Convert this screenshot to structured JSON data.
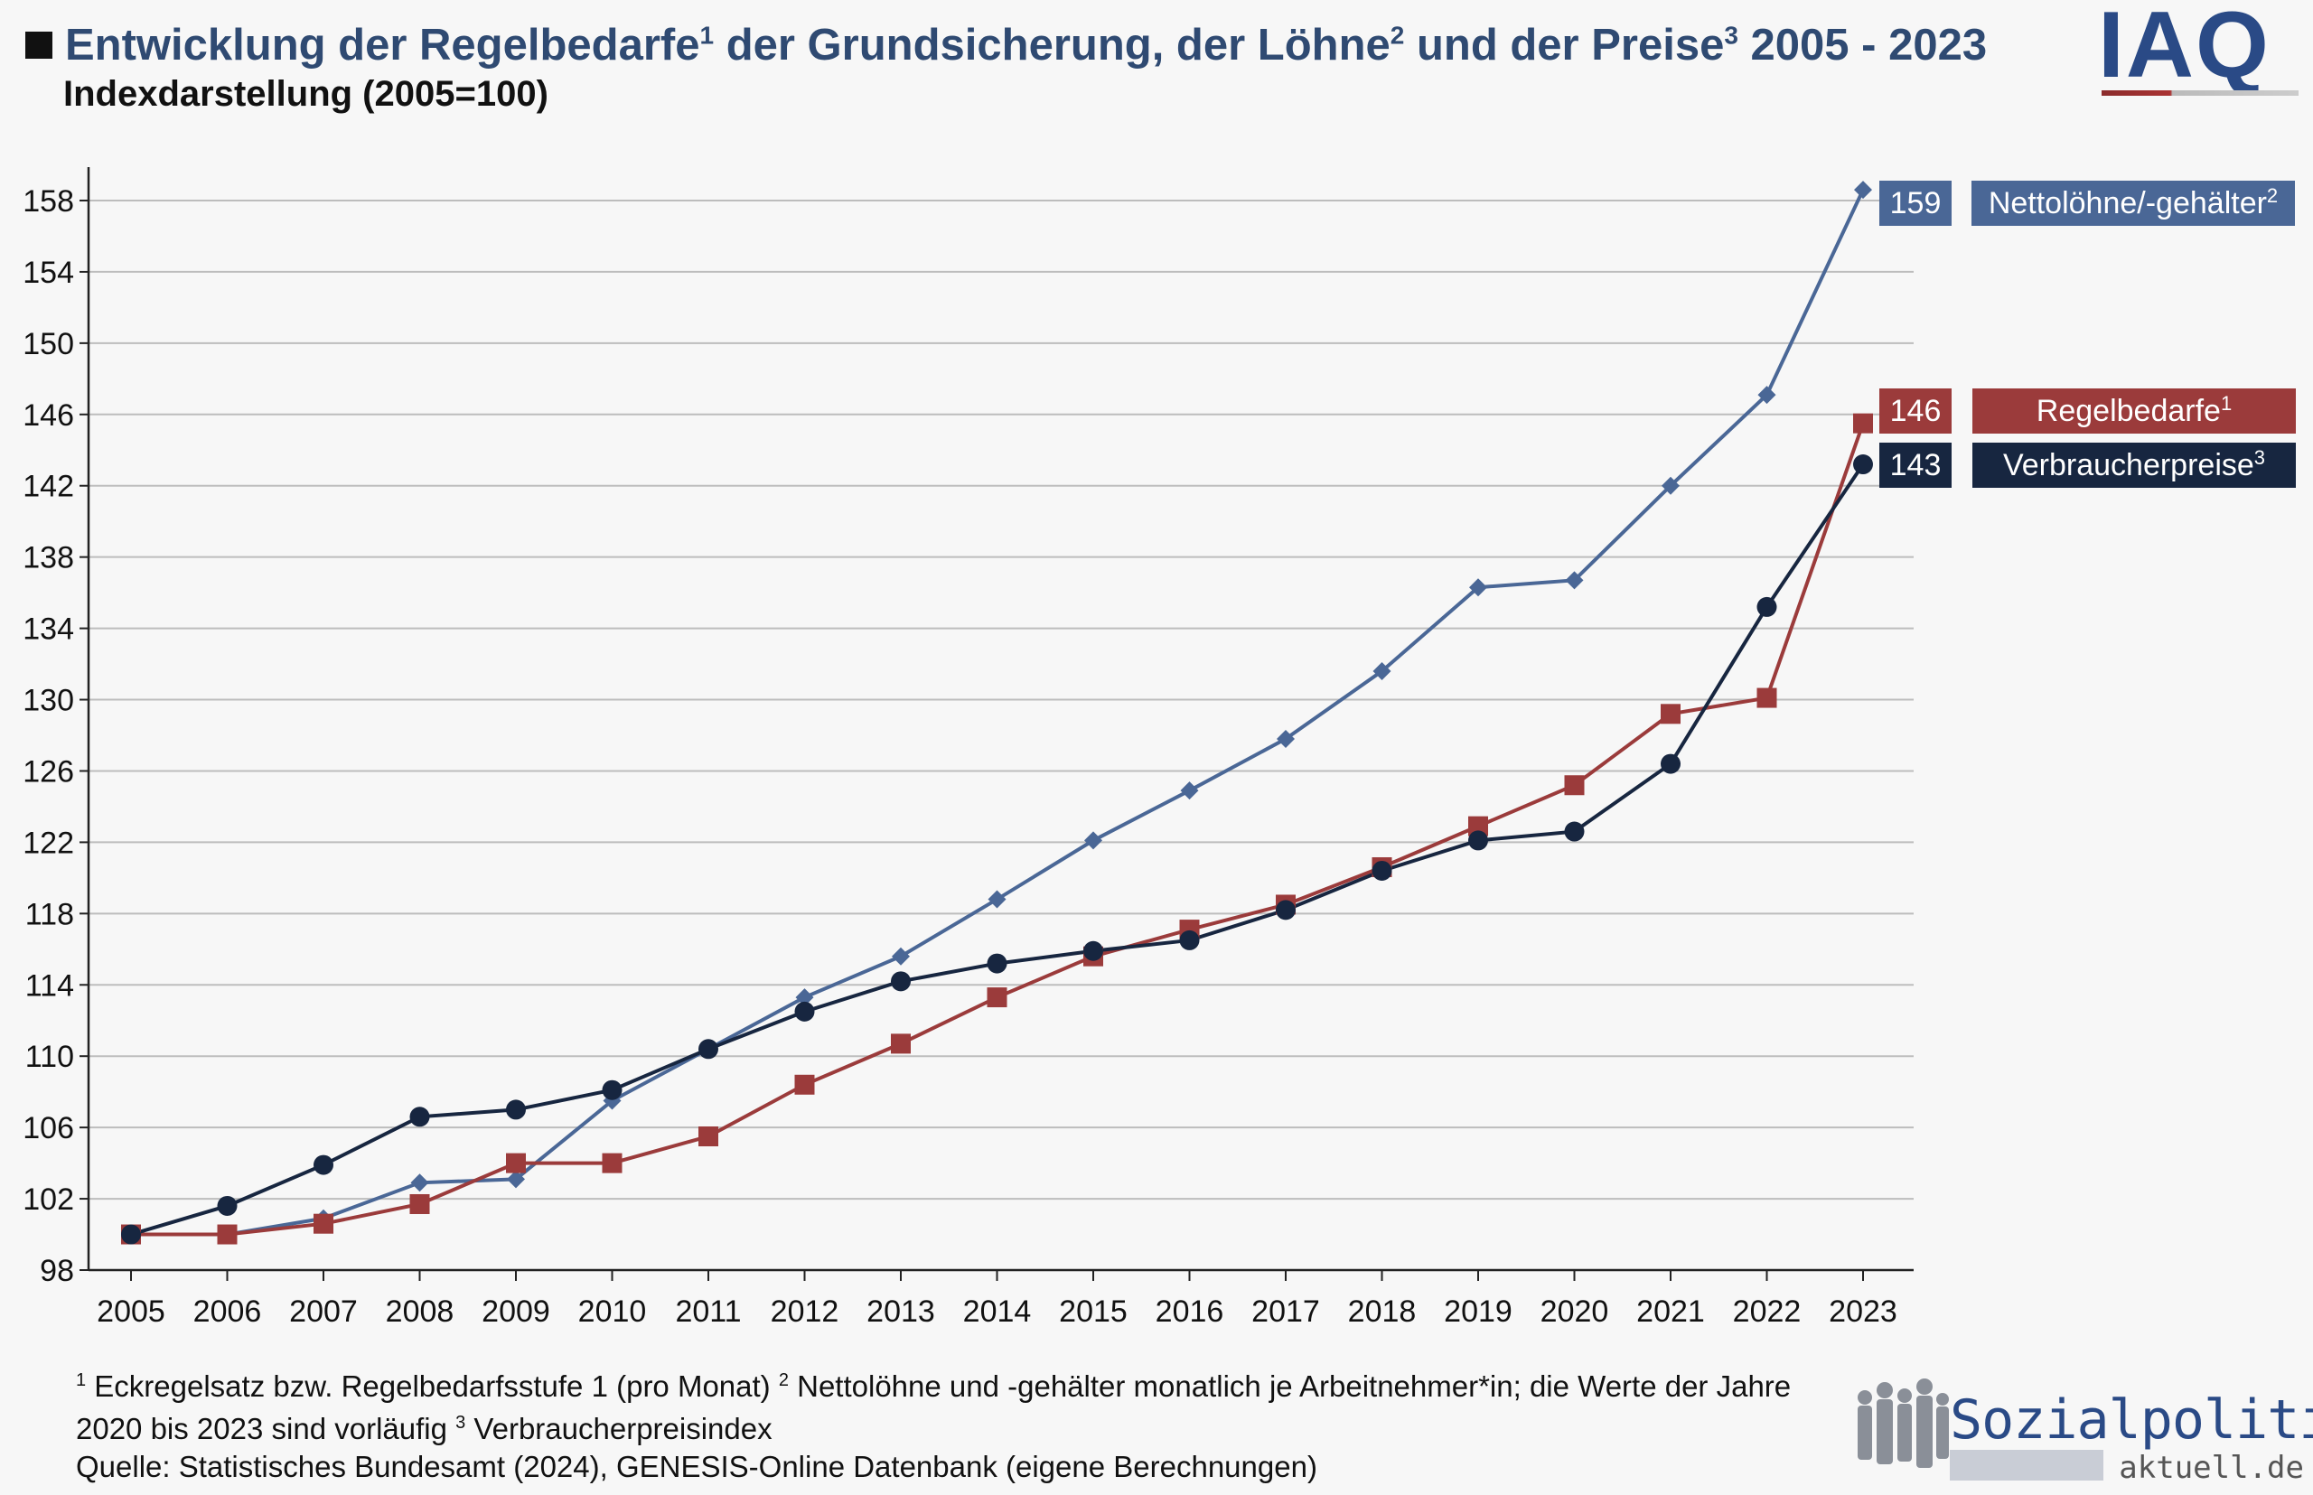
{
  "header": {
    "title_part1": "Entwicklung der Regelbedarfe",
    "title_sup1": "1",
    "title_part2": " der Grundsicherung, der Löhne",
    "title_sup2": "2",
    "title_part3": " und der Preise",
    "title_sup3": "3",
    "title_part4": " 2005 - 2023",
    "subtitle": "Indexdarstellung (2005=100)"
  },
  "logos": {
    "iaq": "IAQ",
    "sozialpolitik_main": "Sozialpolitik-",
    "sozialpolitik_sub": "aktuell.de"
  },
  "footnotes": {
    "n1_mark": "1",
    "n1_text": " Eckregelsatz bzw. Regelbedarfsstufe 1 (pro Monat)  ",
    "n2_mark": "2",
    "n2_text": " Nettolöhne und -gehälter monatlich je Arbeitnehmer*in; die Werte der Jahre 2020 bis 2023 sind vorläufig  ",
    "n3_mark": "3",
    "n3_text": " Verbraucherpreisindex",
    "source": "Quelle: Statistisches Bundesamt (2024), GENESIS-Online Datenbank (eigene Berechnungen)"
  },
  "chart_data": {
    "type": "line",
    "title": "Entwicklung der Regelbedarfe der Grundsicherung, der Löhne und der Preise 2005 - 2023",
    "subtitle": "Indexdarstellung (2005=100)",
    "x": [
      "2005",
      "2006",
      "2007",
      "2008",
      "2009",
      "2010",
      "2011",
      "2012",
      "2013",
      "2014",
      "2015",
      "2016",
      "2017",
      "2018",
      "2019",
      "2020",
      "2021",
      "2022",
      "2023"
    ],
    "ylim": [
      98,
      160
    ],
    "yticks": [
      98,
      102,
      106,
      110,
      114,
      118,
      122,
      126,
      130,
      134,
      138,
      142,
      146,
      150,
      154,
      158
    ],
    "grid": true,
    "series": [
      {
        "name": "Nettolöhne/-gehälter",
        "sup": "2",
        "end_label": "159",
        "color": "#4a6796",
        "marker": "diamond",
        "values": [
          100.0,
          100.0,
          100.9,
          102.9,
          103.1,
          107.5,
          110.4,
          113.3,
          115.6,
          118.8,
          122.1,
          124.9,
          127.8,
          131.6,
          136.3,
          136.7,
          142.0,
          147.1,
          158.6
        ]
      },
      {
        "name": "Regelbedarfe",
        "sup": "1",
        "end_label": "146",
        "color": "#9b3b3b",
        "marker": "square",
        "values": [
          100.0,
          100.0,
          100.6,
          101.7,
          104.0,
          104.0,
          105.5,
          108.4,
          110.7,
          113.3,
          115.6,
          117.1,
          118.5,
          120.6,
          122.9,
          125.2,
          129.2,
          130.1,
          145.5
        ]
      },
      {
        "name": "Verbraucherpreise",
        "sup": "3",
        "end_label": "143",
        "color": "#172640",
        "marker": "circle",
        "values": [
          100.0,
          101.6,
          103.9,
          106.6,
          107.0,
          108.1,
          110.4,
          112.5,
          114.2,
          115.2,
          115.9,
          116.5,
          118.2,
          120.4,
          122.1,
          122.6,
          126.4,
          135.2,
          143.2
        ]
      }
    ]
  }
}
